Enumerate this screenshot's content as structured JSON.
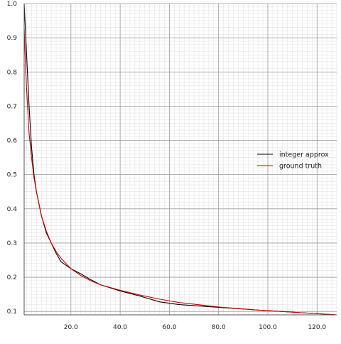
{
  "chart_data": {
    "type": "line",
    "title": "",
    "xlabel": "",
    "ylabel": "",
    "xlim": [
      1,
      128
    ],
    "ylim": [
      0.09,
      1.0
    ],
    "grid": true,
    "legend_position": "right-middle",
    "x_ticks": [
      "20.0",
      "40.0",
      "60.0",
      "80.0",
      "100.0",
      "120.0"
    ],
    "y_ticks": [
      "0.1",
      "0.2",
      "0.3",
      "0.4",
      "0.5",
      "0.6",
      "0.7",
      "0.8",
      "0.9",
      "1.0"
    ],
    "series": [
      {
        "name": "integer approx",
        "color": "#000000",
        "points": [
          [
            1,
            1.0
          ],
          [
            2,
            0.85
          ],
          [
            3,
            0.7
          ],
          [
            4,
            0.58
          ],
          [
            5,
            0.5
          ],
          [
            6,
            0.45
          ],
          [
            8,
            0.38
          ],
          [
            10,
            0.33
          ],
          [
            12,
            0.3
          ],
          [
            14,
            0.27
          ],
          [
            16,
            0.245
          ],
          [
            20,
            0.225
          ],
          [
            24,
            0.21
          ],
          [
            28,
            0.193
          ],
          [
            32,
            0.178
          ],
          [
            40,
            0.16
          ],
          [
            48,
            0.145
          ],
          [
            56,
            0.128
          ],
          [
            64,
            0.12
          ],
          [
            80,
            0.112
          ],
          [
            96,
            0.104
          ],
          [
            112,
            0.097
          ],
          [
            128,
            0.09
          ]
        ]
      },
      {
        "name": "ground truth",
        "color": "#cc0000",
        "points": [
          [
            1,
            0.93
          ],
          [
            1.5,
            0.83
          ],
          [
            2,
            0.75
          ],
          [
            3,
            0.62
          ],
          [
            4,
            0.55
          ],
          [
            5,
            0.49
          ],
          [
            6,
            0.45
          ],
          [
            8,
            0.38
          ],
          [
            10,
            0.335
          ],
          [
            12,
            0.3
          ],
          [
            14,
            0.275
          ],
          [
            16,
            0.255
          ],
          [
            20,
            0.225
          ],
          [
            24,
            0.205
          ],
          [
            28,
            0.19
          ],
          [
            32,
            0.178
          ],
          [
            40,
            0.162
          ],
          [
            48,
            0.148
          ],
          [
            56,
            0.136
          ],
          [
            64,
            0.126
          ],
          [
            80,
            0.113
          ],
          [
            96,
            0.104
          ],
          [
            112,
            0.097
          ],
          [
            128,
            0.09
          ]
        ]
      }
    ]
  }
}
